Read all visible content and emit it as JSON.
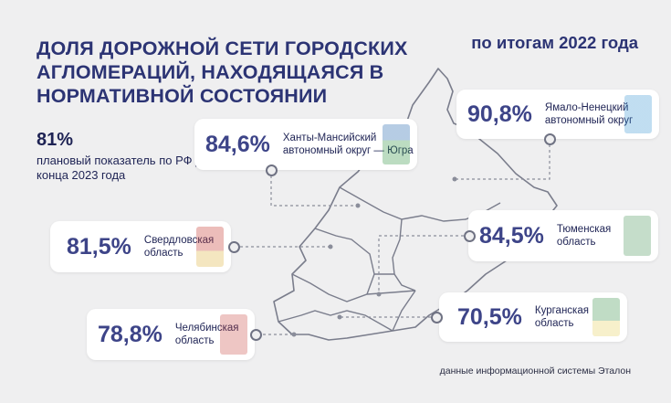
{
  "header": {
    "title": "ДОЛЯ ДОРОЖНОЙ СЕТИ ГОРОДСКИХ АГЛОМЕРАЦИЙ, НАХОДЯЩАЯСЯ В НОРМАТИВНОЙ СОСТОЯНИИ",
    "subtitle": "по итогам 2022 года"
  },
  "plan": {
    "value": "81%",
    "label": "плановый показатель по РФ до конца 2023 года"
  },
  "regions": [
    {
      "id": "khmao",
      "value": "84,6%",
      "line1": "Ханты-Мансийский",
      "line2": "автономный округ — Югра",
      "emblem": "khmao-coat-of-arms-icon"
    },
    {
      "id": "yanao",
      "value": "90,8%",
      "line1": "Ямало-Ненецкий",
      "line2": "автономный округ",
      "emblem": "yanao-coat-of-arms-icon"
    },
    {
      "id": "sverdlovsk",
      "value": "81,5%",
      "line1": "Свердловская",
      "line2": "область",
      "emblem": "sverdlovsk-coat-of-arms-icon"
    },
    {
      "id": "tyumen",
      "value": "84,5%",
      "line1": "Тюменская",
      "line2": "область",
      "emblem": "tyumen-coat-of-arms-icon"
    },
    {
      "id": "kurgan",
      "value": "70,5%",
      "line1": "Курганская",
      "line2": "область",
      "emblem": "kurgan-coat-of-arms-icon"
    },
    {
      "id": "chelyabinsk",
      "value": "78,8%",
      "line1": "Челябинская",
      "line2": "область",
      "emblem": "chelyabinsk-coat-of-arms-icon"
    }
  ],
  "footer": {
    "source": "данные информационной системы Эталон"
  },
  "colors": {
    "background": "#efeff0",
    "title": "#2c3474",
    "value": "#3d4488",
    "map_outline": "#7a7d8c"
  }
}
